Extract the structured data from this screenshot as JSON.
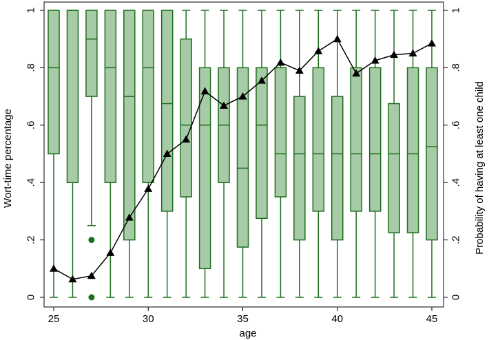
{
  "chart_data": {
    "type": "boxplot_with_line",
    "xlabel": "age",
    "ylabel_left": "Wort-time percentage",
    "ylabel_right": "Probability of having at least one child",
    "xlim": [
      24.5,
      45.5
    ],
    "ylim": [
      0,
      1
    ],
    "x_ticks": [
      25,
      30,
      35,
      40,
      45
    ],
    "x_tick_labels": [
      "25",
      "30",
      "35",
      "40",
      "45"
    ],
    "y_ticks": [
      0,
      0.2,
      0.4,
      0.6,
      0.8,
      1
    ],
    "y_tick_labels": [
      "0",
      ".2",
      ".4",
      ".6",
      ".8",
      "1"
    ],
    "box_color": "#1e6e1e",
    "box_fill": "#a6cba6",
    "line_color": "#000000",
    "boxes": [
      {
        "age": 25,
        "whisker_low": 0,
        "q1": 0.5,
        "median": 0.8,
        "q3": 1,
        "whisker_high": 1,
        "outliers": []
      },
      {
        "age": 26,
        "whisker_low": 0,
        "q1": 0.4,
        "median": 1,
        "q3": 1,
        "whisker_high": 1,
        "outliers": []
      },
      {
        "age": 27,
        "whisker_low": 0.25,
        "q1": 0.7,
        "median": 0.9,
        "q3": 1,
        "whisker_high": 1,
        "outliers": [
          0.2,
          0
        ]
      },
      {
        "age": 28,
        "whisker_low": 0,
        "q1": 0.4,
        "median": 0.8,
        "q3": 1,
        "whisker_high": 1,
        "outliers": []
      },
      {
        "age": 29,
        "whisker_low": 0,
        "q1": 0.2,
        "median": 0.7,
        "q3": 1,
        "whisker_high": 1,
        "outliers": []
      },
      {
        "age": 30,
        "whisker_low": 0,
        "q1": 0.4,
        "median": 0.8,
        "q3": 1,
        "whisker_high": 1,
        "outliers": []
      },
      {
        "age": 31,
        "whisker_low": 0,
        "q1": 0.3,
        "median": 0.675,
        "q3": 1,
        "whisker_high": 1,
        "outliers": []
      },
      {
        "age": 32,
        "whisker_low": 0,
        "q1": 0.35,
        "median": 0.6,
        "q3": 0.9,
        "whisker_high": 1,
        "outliers": []
      },
      {
        "age": 33,
        "whisker_low": 0,
        "q1": 0.1,
        "median": 0.6,
        "q3": 0.8,
        "whisker_high": 1,
        "outliers": []
      },
      {
        "age": 34,
        "whisker_low": 0,
        "q1": 0.4,
        "median": 0.6,
        "q3": 0.8,
        "whisker_high": 1,
        "outliers": []
      },
      {
        "age": 35,
        "whisker_low": 0,
        "q1": 0.175,
        "median": 0.45,
        "q3": 0.8,
        "whisker_high": 1,
        "outliers": []
      },
      {
        "age": 36,
        "whisker_low": 0,
        "q1": 0.275,
        "median": 0.6,
        "q3": 0.8,
        "whisker_high": 1,
        "outliers": []
      },
      {
        "age": 37,
        "whisker_low": 0,
        "q1": 0.35,
        "median": 0.5,
        "q3": 0.8,
        "whisker_high": 1,
        "outliers": []
      },
      {
        "age": 38,
        "whisker_low": 0,
        "q1": 0.2,
        "median": 0.5,
        "q3": 0.7,
        "whisker_high": 1,
        "outliers": []
      },
      {
        "age": 39,
        "whisker_low": 0,
        "q1": 0.3,
        "median": 0.5,
        "q3": 0.8,
        "whisker_high": 1,
        "outliers": []
      },
      {
        "age": 40,
        "whisker_low": 0,
        "q1": 0.2,
        "median": 0.5,
        "q3": 0.7,
        "whisker_high": 1,
        "outliers": []
      },
      {
        "age": 41,
        "whisker_low": 0,
        "q1": 0.3,
        "median": 0.5,
        "q3": 0.8,
        "whisker_high": 1,
        "outliers": []
      },
      {
        "age": 42,
        "whisker_low": 0,
        "q1": 0.3,
        "median": 0.5,
        "q3": 0.8,
        "whisker_high": 1,
        "outliers": []
      },
      {
        "age": 43,
        "whisker_low": 0,
        "q1": 0.225,
        "median": 0.5,
        "q3": 0.675,
        "whisker_high": 1,
        "outliers": []
      },
      {
        "age": 44,
        "whisker_low": 0,
        "q1": 0.225,
        "median": 0.5,
        "q3": 0.8,
        "whisker_high": 1,
        "outliers": []
      },
      {
        "age": 45,
        "whisker_low": 0,
        "q1": 0.2,
        "median": 0.525,
        "q3": 0.8,
        "whisker_high": 1,
        "outliers": []
      }
    ],
    "probability_line": {
      "marker": "triangle",
      "x": [
        25,
        26,
        27,
        28,
        29,
        30,
        31,
        32,
        33,
        34,
        35,
        36,
        37,
        38,
        39,
        40,
        41,
        42,
        43,
        44,
        45
      ],
      "y": [
        0.1,
        0.063,
        0.075,
        0.155,
        0.278,
        0.378,
        0.5,
        0.55,
        0.718,
        0.668,
        0.7,
        0.755,
        0.818,
        0.79,
        0.858,
        0.9,
        0.78,
        0.825,
        0.845,
        0.85,
        0.885
      ]
    }
  }
}
